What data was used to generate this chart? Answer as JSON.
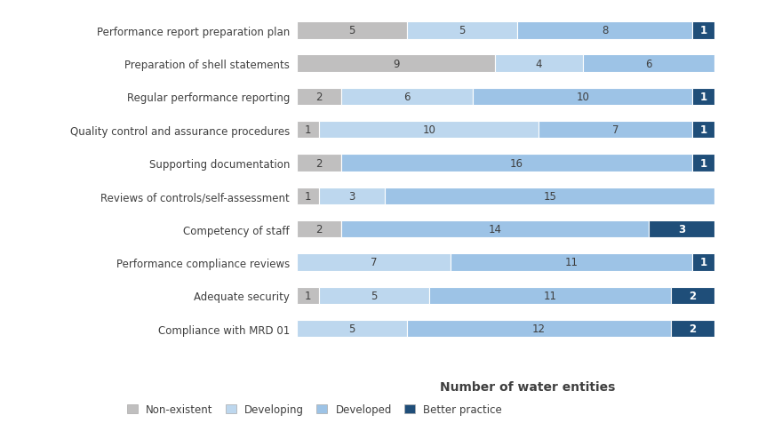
{
  "categories": [
    "Performance report preparation plan",
    "Preparation of shell statements",
    "Regular performance reporting",
    "Quality control and assurance procedures",
    "Supporting documentation",
    "Reviews of controls/self-assessment",
    "Competency of staff",
    "Performance compliance reviews",
    "Adequate security",
    "Compliance with MRD 01"
  ],
  "series": {
    "Non-existent": [
      5,
      9,
      2,
      1,
      2,
      1,
      2,
      0,
      1,
      0
    ],
    "Developing": [
      5,
      4,
      6,
      10,
      0,
      3,
      0,
      7,
      5,
      5
    ],
    "Developed": [
      8,
      6,
      10,
      7,
      16,
      15,
      14,
      11,
      11,
      12
    ],
    "Better practice": [
      1,
      0,
      1,
      1,
      1,
      0,
      3,
      1,
      2,
      2
    ]
  },
  "colors": {
    "Non-existent": "#c0bfbf",
    "Developing": "#bdd7ee",
    "Developed": "#9dc3e6",
    "Better practice": "#1f4e79"
  },
  "xlabel": "Number of water entities",
  "legend_labels": [
    "Non-existent",
    "Developing",
    "Developed",
    "Better practice"
  ],
  "bar_height": 0.52,
  "figsize": [
    8.8,
    4.77
  ],
  "dpi": 100,
  "text_color": "#3f3f3f",
  "label_fontsize": 8.5,
  "xlabel_fontsize": 10,
  "legend_fontsize": 8.5,
  "xlim": [
    0,
    21
  ]
}
